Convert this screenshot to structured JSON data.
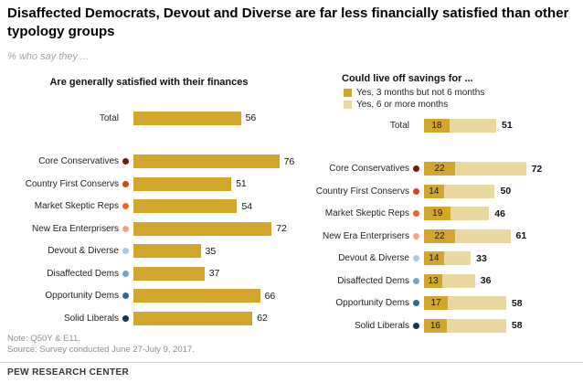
{
  "title": "Disaffected Democrats, Devout and Diverse are far less financially satisfied than other typology groups",
  "subtitle": "% who say they ...",
  "left_chart": {
    "header": "Are generally satisfied with their finances",
    "rows": [
      {
        "label": "Total",
        "value": 56,
        "dot": null
      },
      {
        "label": "Core Conservatives",
        "value": 76,
        "dot": "#721a0b"
      },
      {
        "label": "Country First Conservs",
        "value": 51,
        "dot": "#cf4420"
      },
      {
        "label": "Market Skeptic Reps",
        "value": 54,
        "dot": "#e6662d"
      },
      {
        "label": "New Era Enterprisers",
        "value": 72,
        "dot": "#f4a583"
      },
      {
        "label": "Devout & Diverse",
        "value": 35,
        "dot": "#aac9e0"
      },
      {
        "label": "Disaffected Dems",
        "value": 37,
        "dot": "#76a2c2"
      },
      {
        "label": "Opportunity Dems",
        "value": 66,
        "dot": "#33688f"
      },
      {
        "label": "Solid Liberals",
        "value": 62,
        "dot": "#12344d"
      }
    ]
  },
  "right_chart": {
    "header": "Could live off savings for ...",
    "legend": [
      {
        "label": "Yes, 3 months but not 6 months",
        "color": "#d2a52c"
      },
      {
        "label": "Yes, 6 or more months",
        "color": "#e9d7a0"
      }
    ],
    "rows": [
      {
        "label": "Total",
        "seg1": 18,
        "total": 51,
        "dot": null
      },
      {
        "label": "Core Conservatives",
        "seg1": 22,
        "total": 72,
        "dot": "#721a0b"
      },
      {
        "label": "Country First Conservs",
        "seg1": 14,
        "total": 50,
        "dot": "#cf4420"
      },
      {
        "label": "Market Skeptic Reps",
        "seg1": 19,
        "total": 46,
        "dot": "#e6662d"
      },
      {
        "label": "New Era Enterprisers",
        "seg1": 22,
        "total": 61,
        "dot": "#f4a583"
      },
      {
        "label": "Devout & Diverse",
        "seg1": 14,
        "total": 33,
        "dot": "#aac9e0"
      },
      {
        "label": "Disaffected Dems",
        "seg1": 13,
        "total": 36,
        "dot": "#76a2c2"
      },
      {
        "label": "Opportunity Dems",
        "seg1": 17,
        "total": 58,
        "dot": "#33688f"
      },
      {
        "label": "Solid Liberals",
        "seg1": 16,
        "total": 58,
        "dot": "#12344d"
      }
    ]
  },
  "colors": {
    "bar_gold": "#d2a52c",
    "bar_tan": "#e9d7a0"
  },
  "note": "Note: Q50Y & E11.",
  "source": "Source: Survey conducted June 27-July 9, 2017.",
  "footer": "PEW RESEARCH CENTER",
  "chart_data": [
    {
      "type": "bar",
      "orientation": "horizontal",
      "title": "Are generally satisfied with their finances",
      "categories": [
        "Total",
        "Core Conservatives",
        "Country First Conservs",
        "Market Skeptic Reps",
        "New Era Enterprisers",
        "Devout & Diverse",
        "Disaffected Dems",
        "Opportunity Dems",
        "Solid Liberals"
      ],
      "values": [
        56,
        76,
        51,
        54,
        72,
        35,
        37,
        66,
        62
      ],
      "unit": "%",
      "xlim": [
        0,
        80
      ],
      "grid": false,
      "legend_position": "none"
    },
    {
      "type": "bar",
      "orientation": "horizontal",
      "stacked": true,
      "title": "Could live off savings for ...",
      "categories": [
        "Total",
        "Core Conservatives",
        "Country First Conservs",
        "Market Skeptic Reps",
        "New Era Enterprisers",
        "Devout & Diverse",
        "Disaffected Dems",
        "Opportunity Dems",
        "Solid Liberals"
      ],
      "series": [
        {
          "name": "Yes, 3 months but not 6 months",
          "values": [
            18,
            22,
            14,
            19,
            22,
            14,
            13,
            17,
            16
          ]
        },
        {
          "name": "Yes, 6 or more months",
          "values": [
            33,
            50,
            36,
            27,
            39,
            19,
            23,
            41,
            42
          ]
        }
      ],
      "totals": [
        51,
        72,
        50,
        46,
        61,
        33,
        36,
        58,
        58
      ],
      "unit": "%",
      "xlim": [
        0,
        80
      ],
      "grid": false,
      "legend_position": "top"
    }
  ]
}
